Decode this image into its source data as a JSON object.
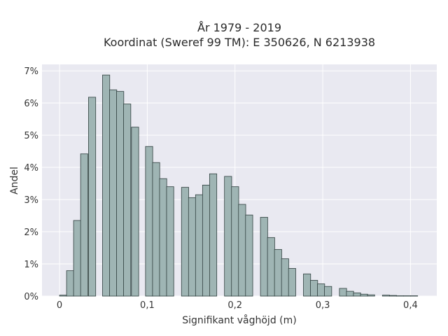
{
  "chart_data": {
    "type": "bar",
    "title_line1": "År 1979 - 2019",
    "title_line2": "Koordinat (Sweref 99 TM): E 350626, N 6213938",
    "xlabel": "Signifikant våghöjd (m)",
    "ylabel": "Andel",
    "x_ticks": [
      "0",
      "0,1",
      "0,2",
      "0,3",
      "0,4"
    ],
    "y_ticks": [
      "0%",
      "1%",
      "2%",
      "3%",
      "4%",
      "5%",
      "6%",
      "7%"
    ],
    "xlim": [
      -0.02,
      0.43
    ],
    "ylim": [
      0,
      7.2
    ],
    "bin_width": 0.0082,
    "grid": true,
    "bar_color": "#9fb5b4",
    "bar_edge_color": "#2f3f3e",
    "background_color": "#e9e9f1",
    "bin_starts": [
      0.0,
      0.008,
      0.016,
      0.024,
      0.033,
      0.049,
      0.057,
      0.065,
      0.073,
      0.082,
      0.098,
      0.106,
      0.114,
      0.122,
      0.139,
      0.147,
      0.155,
      0.163,
      0.171,
      0.188,
      0.196,
      0.204,
      0.212,
      0.229,
      0.237,
      0.245,
      0.253,
      0.261,
      0.278,
      0.286,
      0.294,
      0.302,
      0.319,
      0.327,
      0.335,
      0.343,
      0.351,
      0.368,
      0.376,
      0.384,
      0.392,
      0.4
    ],
    "values": [
      0.03,
      0.79,
      2.35,
      4.42,
      6.18,
      6.87,
      6.41,
      6.36,
      5.97,
      5.25,
      4.65,
      4.15,
      3.65,
      3.4,
      3.38,
      3.06,
      3.15,
      3.45,
      3.8,
      3.72,
      3.4,
      2.85,
      2.52,
      2.45,
      1.82,
      1.45,
      1.16,
      0.86,
      0.69,
      0.49,
      0.38,
      0.3,
      0.24,
      0.15,
      0.1,
      0.06,
      0.04,
      0.03,
      0.02,
      0.01,
      0.01,
      0.01
    ]
  }
}
